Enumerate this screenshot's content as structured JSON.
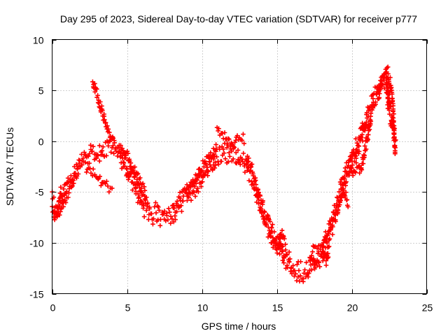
{
  "chart_data": {
    "type": "scatter",
    "title": "Day 295 of 2023, Sidereal Day-to-day VTEC variation (SDTVAR) for receiver p777",
    "xlabel": "GPS time / hours",
    "ylabel": "SDTVAR / TECUs",
    "xlim": [
      0,
      25
    ],
    "ylim": [
      -15,
      10
    ],
    "xticks": [
      0,
      5,
      10,
      15,
      20,
      25
    ],
    "yticks": [
      -15,
      -10,
      -5,
      0,
      5,
      10
    ],
    "grid": true,
    "marker": "+",
    "series_color": "#ff0000",
    "series": [
      {
        "name": "SDTVAR",
        "approximate_trend": [
          [
            0.0,
            -6.0
          ],
          [
            0.3,
            -6.8
          ],
          [
            0.6,
            -5.5
          ],
          [
            1.0,
            -4.5
          ],
          [
            1.5,
            -3.0
          ],
          [
            2.0,
            -1.8
          ],
          [
            2.5,
            -1.5
          ],
          [
            3.0,
            -1.0
          ],
          [
            3.5,
            -0.8
          ],
          [
            4.0,
            -0.5
          ],
          [
            4.5,
            -1.0
          ],
          [
            5.0,
            -2.5
          ],
          [
            5.5,
            -4.0
          ],
          [
            6.0,
            -6.0
          ],
          [
            6.5,
            -7.0
          ],
          [
            7.0,
            -7.2
          ],
          [
            7.5,
            -7.5
          ],
          [
            8.0,
            -7.2
          ],
          [
            8.5,
            -6.0
          ],
          [
            9.0,
            -5.0
          ],
          [
            9.5,
            -4.5
          ],
          [
            10.0,
            -3.5
          ],
          [
            10.5,
            -2.5
          ],
          [
            11.0,
            -1.5
          ],
          [
            11.5,
            -1.0
          ],
          [
            12.0,
            -1.2
          ],
          [
            12.5,
            -1.5
          ],
          [
            13.0,
            -2.0
          ],
          [
            13.5,
            -4.0
          ],
          [
            14.0,
            -6.5
          ],
          [
            14.5,
            -8.5
          ],
          [
            15.0,
            -10.0
          ],
          [
            15.5,
            -11.5
          ],
          [
            16.0,
            -12.5
          ],
          [
            16.5,
            -13.0
          ],
          [
            17.0,
            -12.8
          ],
          [
            17.5,
            -12.0
          ],
          [
            18.0,
            -11.0
          ],
          [
            18.5,
            -9.0
          ],
          [
            19.0,
            -6.5
          ],
          [
            19.5,
            -4.0
          ],
          [
            20.0,
            -2.0
          ],
          [
            20.5,
            0.0
          ],
          [
            21.0,
            2.0
          ],
          [
            21.5,
            4.0
          ],
          [
            22.0,
            5.8
          ],
          [
            22.3,
            6.2
          ],
          [
            22.5,
            3.5
          ],
          [
            22.8,
            1.5
          ],
          [
            22.9,
            -1.0
          ]
        ],
        "extra_segments": [
          [
            [
              2.7,
              5.8
            ],
            [
              3.0,
              4.5
            ],
            [
              3.3,
              3.0
            ],
            [
              3.6,
              1.5
            ],
            [
              3.9,
              0.5
            ],
            [
              4.2,
              -0.2
            ]
          ],
          [
            [
              2.2,
              -2.5
            ],
            [
              2.6,
              -3.0
            ],
            [
              3.0,
              -3.5
            ],
            [
              3.4,
              -4.2
            ],
            [
              3.8,
              -4.5
            ],
            [
              4.1,
              -4.6
            ]
          ],
          [
            [
              0.1,
              -7.5
            ],
            [
              0.5,
              -7.0
            ],
            [
              1.0,
              -5.5
            ]
          ],
          [
            [
              4.5,
              -0.5
            ],
            [
              5.0,
              -1.5
            ],
            [
              5.5,
              -3.0
            ],
            [
              6.0,
              -4.5
            ],
            [
              6.3,
              -5.5
            ]
          ],
          [
            [
              9.0,
              -5.5
            ],
            [
              9.5,
              -4.0
            ],
            [
              10.0,
              -2.5
            ],
            [
              10.5,
              -1.5
            ],
            [
              11.0,
              -0.5
            ]
          ],
          [
            [
              11.0,
              1.2
            ],
            [
              11.5,
              0.5
            ],
            [
              12.0,
              -0.5
            ],
            [
              12.5,
              0.5
            ],
            [
              12.9,
              0.0
            ]
          ],
          [
            [
              14.5,
              -9.5
            ],
            [
              15.0,
              -10.5
            ],
            [
              15.3,
              -9.0
            ],
            [
              15.6,
              -10.0
            ]
          ],
          [
            [
              17.2,
              -11.5
            ],
            [
              17.5,
              -10.5
            ],
            [
              18.0,
              -10.5
            ],
            [
              18.3,
              -12.0
            ],
            [
              18.5,
              -10.5
            ]
          ],
          [
            [
              19.2,
              -6.0
            ],
            [
              19.5,
              -5.0
            ],
            [
              19.8,
              -6.2
            ]
          ],
          [
            [
              20.0,
              -3.5
            ],
            [
              20.3,
              -2.5
            ],
            [
              20.6,
              -3.0
            ],
            [
              21.0,
              0.0
            ],
            [
              21.3,
              2.5
            ]
          ],
          [
            [
              21.8,
              4.5
            ],
            [
              22.0,
              6.0
            ],
            [
              22.2,
              6.6
            ],
            [
              22.4,
              6.8
            ],
            [
              22.6,
              5.5
            ],
            [
              22.8,
              3.0
            ]
          ]
        ]
      }
    ]
  }
}
